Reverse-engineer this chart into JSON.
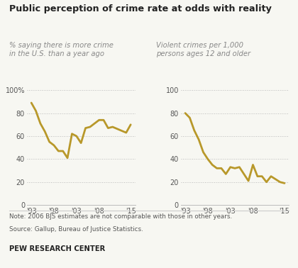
{
  "title": "Public perception of crime rate at odds with reality",
  "subtitle_left": "% saying there is more crime\nin the U.S. than a year ago",
  "subtitle_right": "Violent crimes per 1,000\npersons ages 12 and older",
  "note": "Note: 2006 BJS estimates are not comparable with those in other years.",
  "source": "Source: Gallup, Bureau of Justice Statistics.",
  "footer": "PEW RESEARCH CENTER",
  "line_color": "#B8982A",
  "bg_color": "#f7f7f2",
  "left_x": [
    1993,
    1994,
    1995,
    1996,
    1997,
    1998,
    1999,
    2000,
    2001,
    2002,
    2003,
    2004,
    2005,
    2006,
    2007,
    2008,
    2009,
    2010,
    2011,
    2014,
    2015
  ],
  "left_y": [
    89,
    82,
    71,
    64,
    55,
    52,
    47,
    47,
    41,
    62,
    60,
    54,
    67,
    68,
    71,
    74,
    74,
    67,
    68,
    63,
    70
  ],
  "right_x": [
    1993,
    1994,
    1995,
    1996,
    1997,
    1998,
    1999,
    2000,
    2001,
    2002,
    2003,
    2004,
    2005,
    2007,
    2008,
    2009,
    2010,
    2011,
    2012,
    2014,
    2015
  ],
  "right_y": [
    80,
    76,
    65,
    57,
    46,
    40,
    35,
    32,
    32,
    27,
    33,
    32,
    33,
    21,
    35,
    25,
    25,
    20,
    25,
    20,
    19
  ],
  "left_yticks": [
    0,
    20,
    40,
    60,
    80,
    100
  ],
  "right_yticks": [
    0,
    20,
    40,
    60,
    80,
    100
  ],
  "xtick_labels": [
    "'93",
    "'98",
    "'03",
    "'08",
    "'15"
  ],
  "xtick_positions": [
    1993,
    1998,
    2003,
    2008,
    2015
  ]
}
